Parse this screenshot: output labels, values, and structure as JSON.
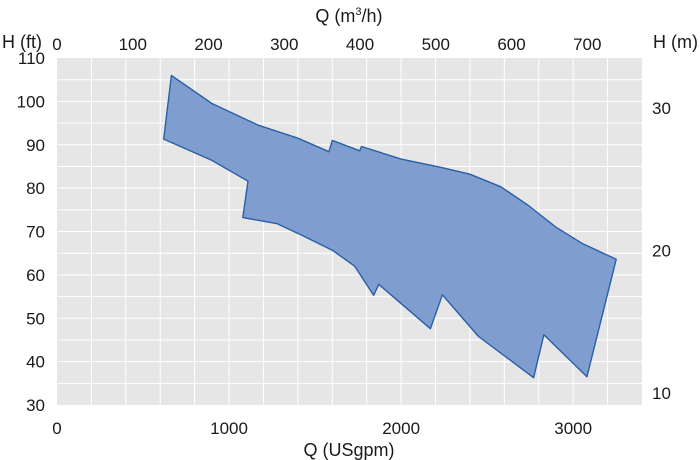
{
  "chart_data": {
    "type": "area",
    "title": "",
    "colors": {
      "fill": "#7f9ecf",
      "stroke": "#2a5fa5",
      "plot_bg": "#e6e6e6",
      "grid": "#ffffff"
    },
    "grid": true,
    "x_axis_bottom": {
      "label": "Q (USgpm)",
      "range": [
        0,
        3400
      ],
      "ticks": [
        0,
        1000,
        2000,
        3000
      ],
      "minor_step": 200
    },
    "x_axis_top": {
      "label_prefix": "Q (m",
      "label_sup": "3",
      "label_suffix": "/h)",
      "range_note": "secondary scale of bottom axis",
      "ticks": [
        0,
        100,
        200,
        300,
        400,
        500,
        600,
        700
      ]
    },
    "y_axis_left": {
      "label": "H (ft)",
      "range": [
        30,
        110
      ],
      "ticks": [
        30,
        40,
        50,
        60,
        70,
        80,
        90,
        100,
        110
      ],
      "minor_step": 5
    },
    "y_axis_right": {
      "label": "H (m)",
      "ticks": [
        10,
        20,
        30
      ]
    },
    "region": [
      [
        665,
        106
      ],
      [
        900,
        99.5
      ],
      [
        1170,
        94.5
      ],
      [
        1400,
        91.5
      ],
      [
        1580,
        88.4
      ],
      [
        1600,
        91
      ],
      [
        1760,
        88.6
      ],
      [
        1770,
        89.6
      ],
      [
        2000,
        86.7
      ],
      [
        2240,
        84.7
      ],
      [
        2400,
        83.2
      ],
      [
        2580,
        80.3
      ],
      [
        2740,
        76
      ],
      [
        2900,
        71
      ],
      [
        3050,
        67.3
      ],
      [
        3250,
        63.6
      ],
      [
        3080,
        36.5
      ],
      [
        2830,
        46.2
      ],
      [
        2770,
        36.3
      ],
      [
        2450,
        45.8
      ],
      [
        2240,
        55.4
      ],
      [
        2170,
        47.6
      ],
      [
        1870,
        57.8
      ],
      [
        1840,
        55.3
      ],
      [
        1730,
        62
      ],
      [
        1600,
        65.7
      ],
      [
        1420,
        69.2
      ],
      [
        1280,
        71.8
      ],
      [
        1080,
        73.2
      ],
      [
        1110,
        81.6
      ],
      [
        900,
        86.4
      ],
      [
        620,
        91.3
      ]
    ]
  }
}
